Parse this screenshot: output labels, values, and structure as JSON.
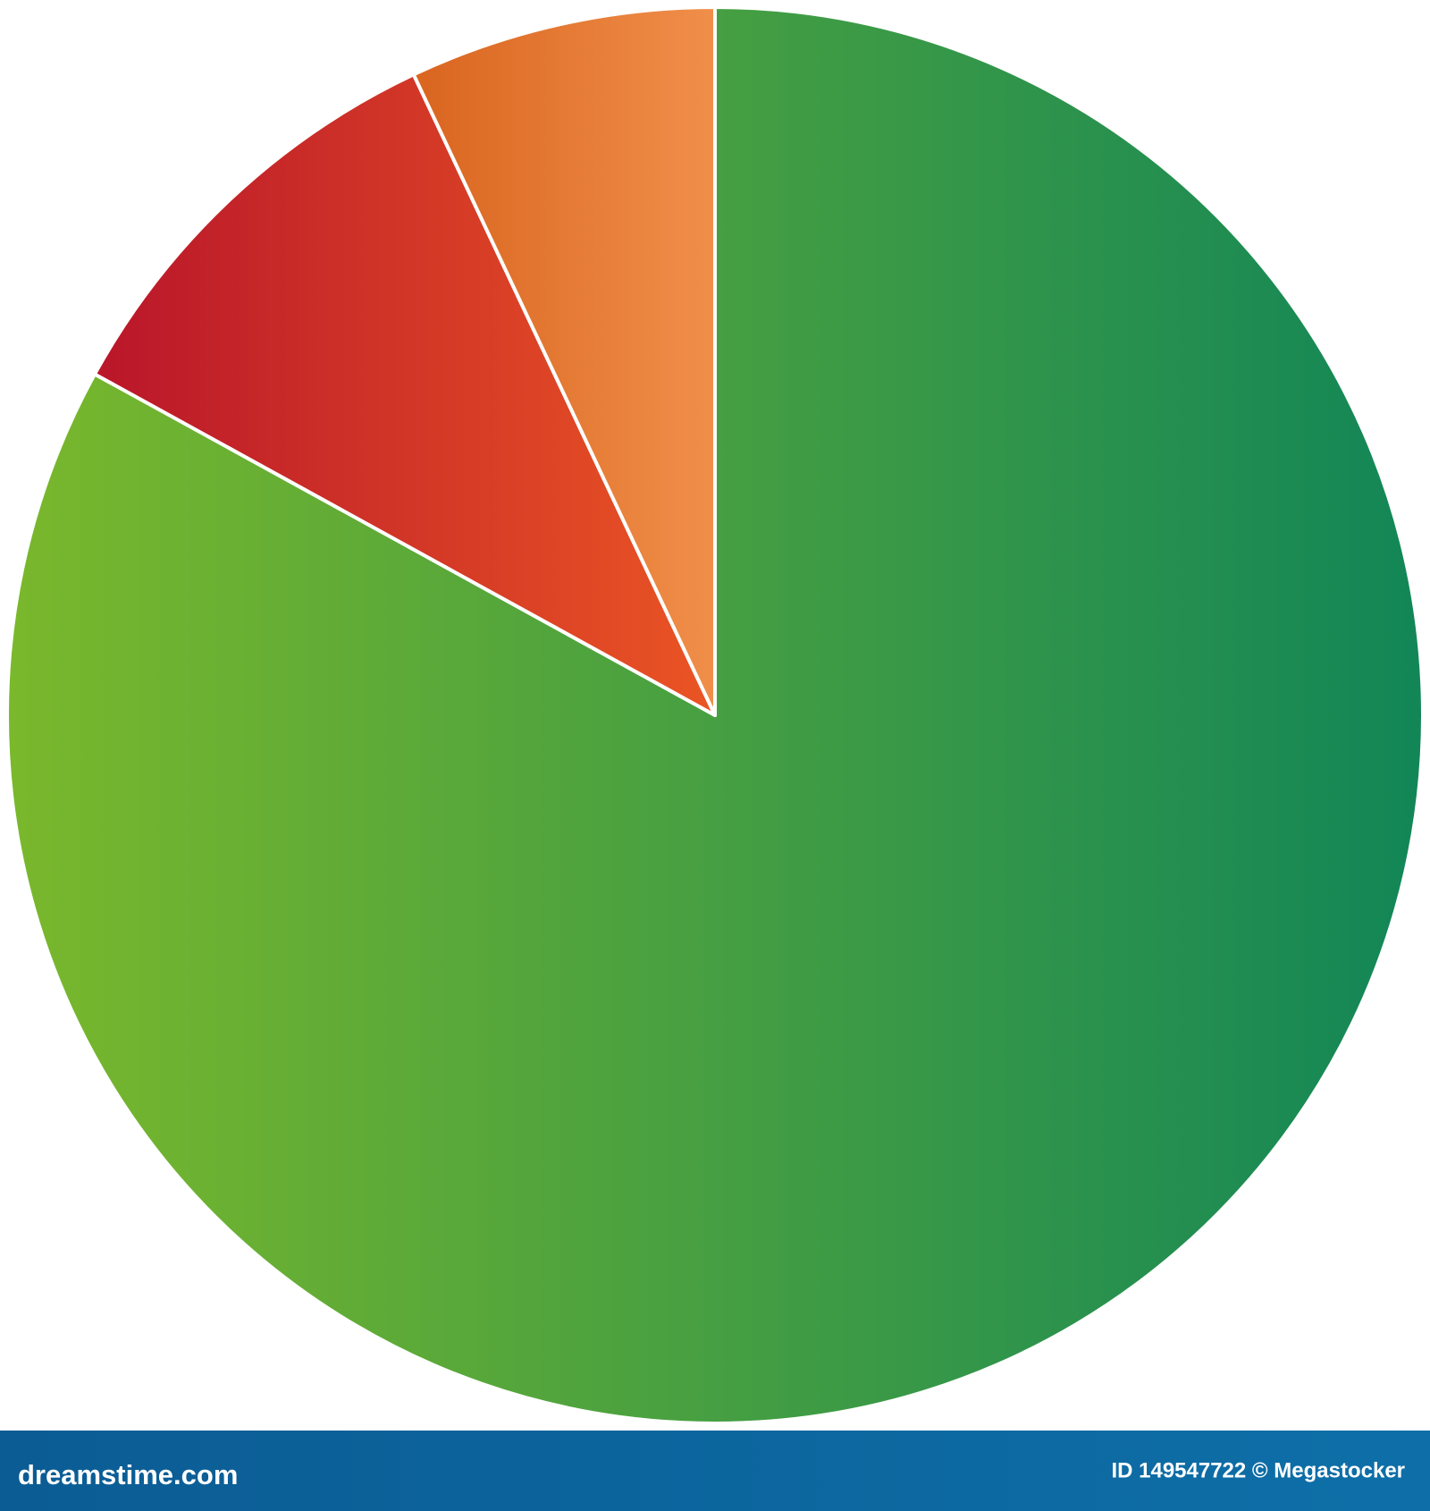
{
  "chart_data": {
    "type": "pie",
    "categories": [
      null,
      null,
      null
    ],
    "values": [
      83,
      10,
      7
    ],
    "colors": [
      [
        "#7ab82c",
        "#128657"
      ],
      [
        "#b9162a",
        "#ea5524"
      ],
      [
        "#d9651f",
        "#f08f4a"
      ]
    ],
    "start_angle": "top",
    "direction": "clockwise"
  },
  "footer": {
    "site": "dreamstime.com",
    "credit": "ID 149547722 © Megastocker"
  }
}
